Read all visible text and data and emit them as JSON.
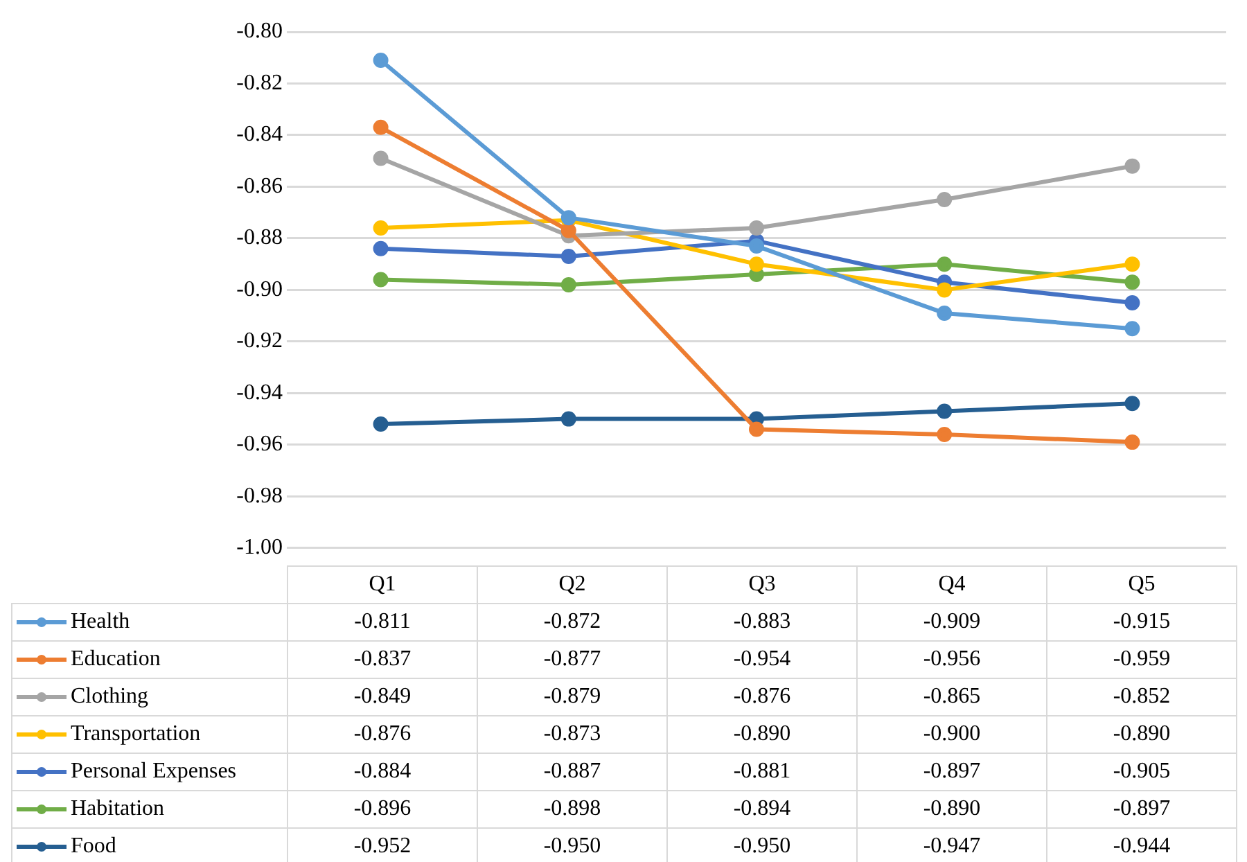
{
  "chart_data": {
    "type": "line",
    "categories": [
      "Q1",
      "Q2",
      "Q3",
      "Q4",
      "Q5"
    ],
    "series": [
      {
        "name": "Health",
        "color": "#5b9bd5",
        "values": [
          -0.811,
          -0.872,
          -0.883,
          -0.909,
          -0.915
        ],
        "value_labels": [
          "-0.811",
          "-0.872",
          "-0.883",
          "-0.909",
          "-0.915"
        ]
      },
      {
        "name": "Education",
        "color": "#ed7d31",
        "values": [
          -0.837,
          -0.877,
          -0.954,
          -0.956,
          -0.959
        ],
        "value_labels": [
          "-0.837",
          "-0.877",
          "-0.954",
          "-0.956",
          "-0.959"
        ]
      },
      {
        "name": "Clothing",
        "color": "#a5a5a5",
        "values": [
          -0.849,
          -0.879,
          -0.876,
          -0.865,
          -0.852
        ],
        "value_labels": [
          "-0.849",
          "-0.879",
          "-0.876",
          "-0.865",
          "-0.852"
        ]
      },
      {
        "name": "Transportation",
        "color": "#ffc000",
        "values": [
          -0.876,
          -0.873,
          -0.89,
          -0.9,
          -0.89
        ],
        "value_labels": [
          "-0.876",
          "-0.873",
          "-0.890",
          "-0.900",
          "-0.890"
        ]
      },
      {
        "name": "Personal Expenses",
        "color": "#4472c4",
        "values": [
          -0.884,
          -0.887,
          -0.881,
          -0.897,
          -0.905
        ],
        "value_labels": [
          "-0.884",
          "-0.887",
          "-0.881",
          "-0.897",
          "-0.905"
        ]
      },
      {
        "name": "Habitation",
        "color": "#70ad47",
        "values": [
          -0.896,
          -0.898,
          -0.894,
          -0.89,
          -0.897
        ],
        "value_labels": [
          "-0.896",
          "-0.898",
          "-0.894",
          "-0.890",
          "-0.897"
        ]
      },
      {
        "name": "Food",
        "color": "#255e91",
        "values": [
          -0.952,
          -0.95,
          -0.95,
          -0.947,
          -0.944
        ],
        "value_labels": [
          "-0.952",
          "-0.950",
          "-0.950",
          "-0.947",
          "-0.944"
        ]
      }
    ],
    "ylim": [
      -1.0,
      -0.8
    ],
    "yticks": [
      {
        "value": -1.0,
        "label": "-1.00"
      },
      {
        "value": -0.98,
        "label": "-0.98"
      },
      {
        "value": -0.96,
        "label": "-0.96"
      },
      {
        "value": -0.94,
        "label": "-0.94"
      },
      {
        "value": -0.92,
        "label": "-0.92"
      },
      {
        "value": -0.9,
        "label": "-0.90"
      },
      {
        "value": -0.88,
        "label": "-0.88"
      },
      {
        "value": -0.86,
        "label": "-0.86"
      },
      {
        "value": -0.84,
        "label": "-0.84"
      },
      {
        "value": -0.82,
        "label": "-0.82"
      },
      {
        "value": -0.8,
        "label": "-0.80"
      }
    ],
    "grid": "y",
    "legend": "bottom",
    "marker": "circle",
    "line_style": "solid"
  }
}
